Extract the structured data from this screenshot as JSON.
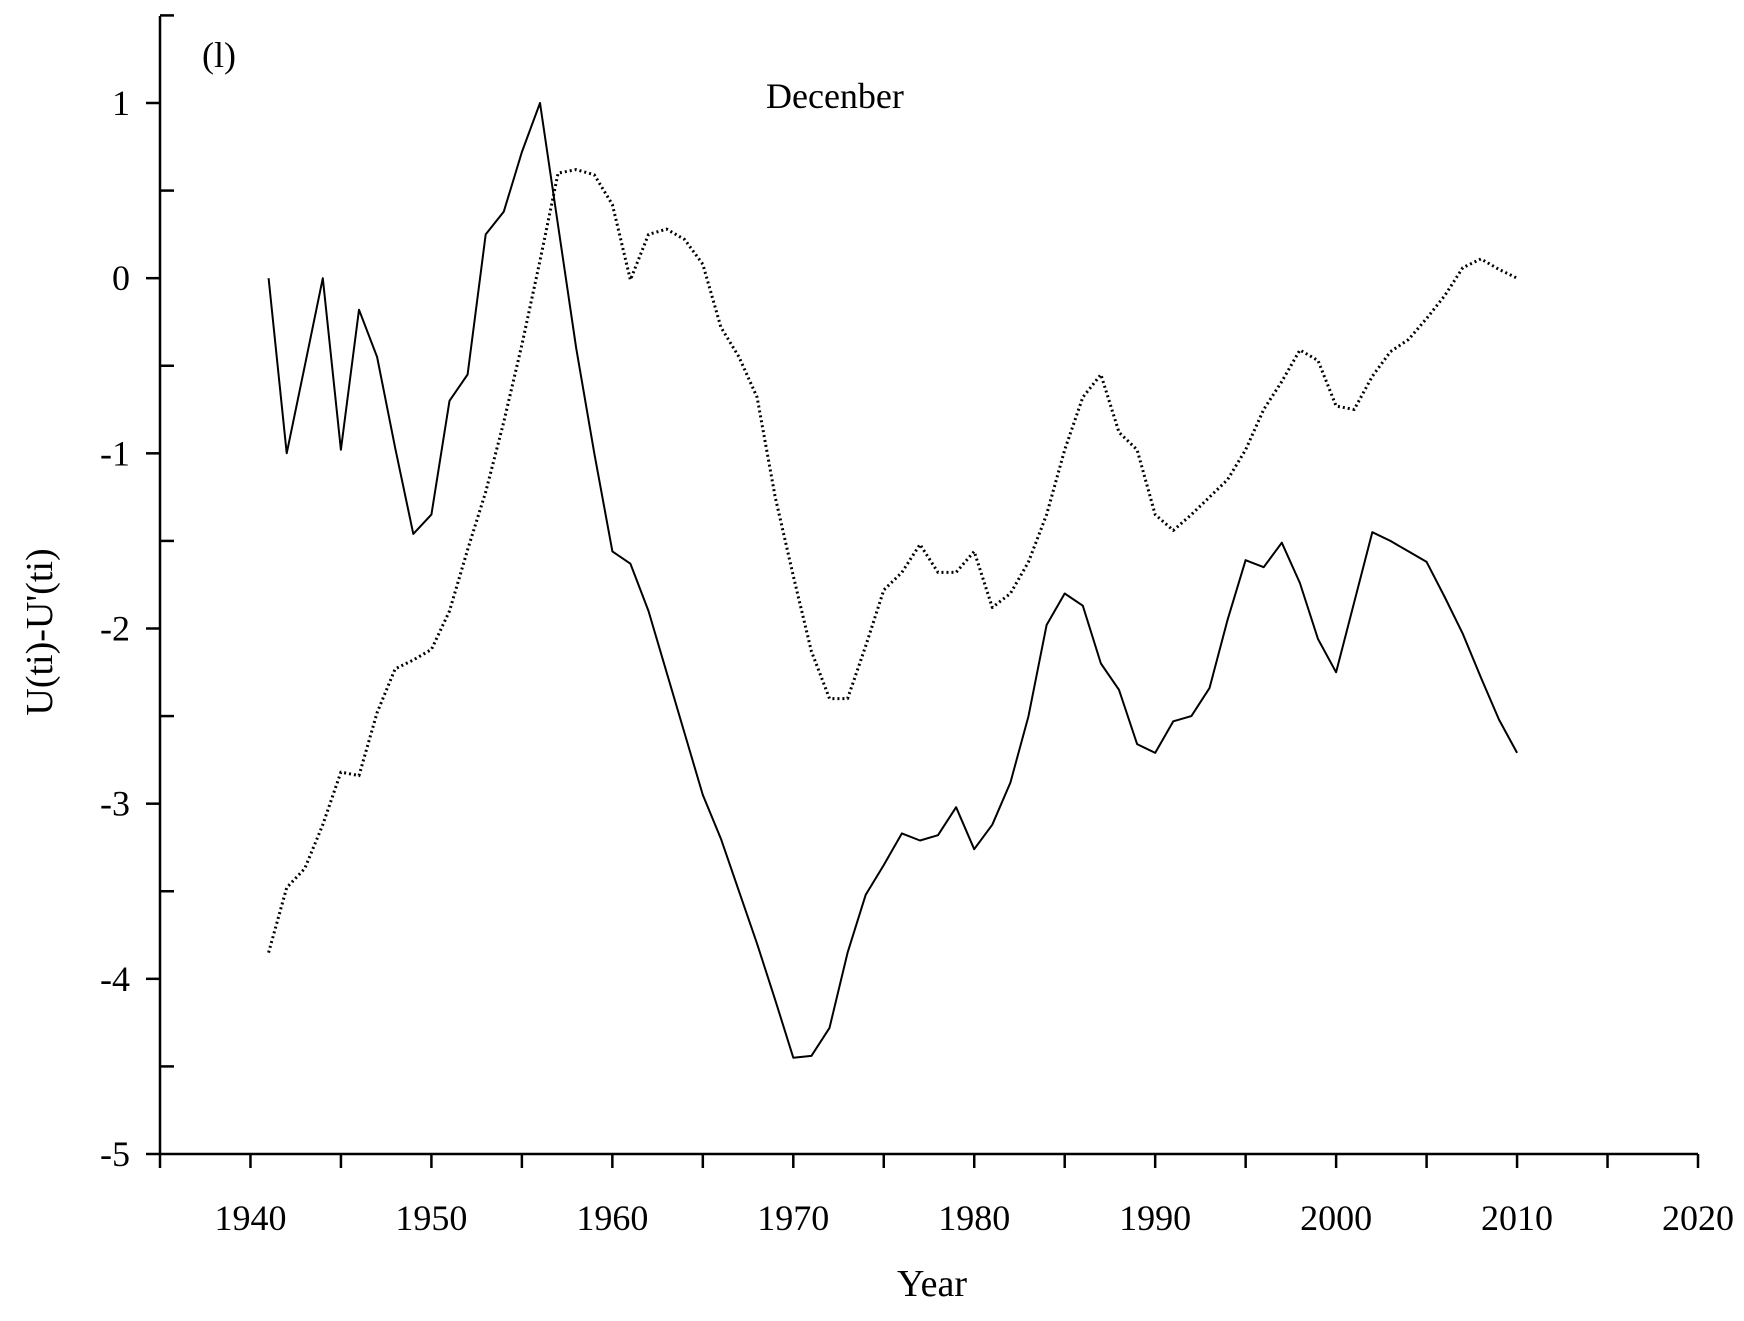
{
  "chart_data": {
    "type": "line",
    "title": "Decenber",
    "panel_label": "(l)",
    "xlabel": "Year",
    "ylabel": "U(ti)-U'(ti)",
    "xlim": [
      1935,
      2020
    ],
    "ylim": [
      -5,
      1.5
    ],
    "xticks": [
      1940,
      1950,
      1960,
      1970,
      1980,
      1990,
      2000,
      2010,
      2020
    ],
    "yticks": [
      1,
      0,
      -1,
      -2,
      -3,
      -4,
      -5
    ],
    "x_minor_step": 5,
    "y_minor_step": 0.5,
    "grid": false,
    "legend": "none",
    "series": [
      {
        "style": "solid",
        "x": [
          1941,
          1942,
          1943,
          1944,
          1945,
          1946,
          1947,
          1948,
          1949,
          1950,
          1951,
          1952,
          1953,
          1954,
          1955,
          1956,
          1957,
          1958,
          1959,
          1960,
          1961,
          1962,
          1963,
          1964,
          1965,
          1966,
          1967,
          1968,
          1969,
          1970,
          1971,
          1972,
          1973,
          1974,
          1975,
          1976,
          1977,
          1978,
          1979,
          1980,
          1981,
          1982,
          1983,
          1984,
          1985,
          1986,
          1987,
          1988,
          1989,
          1990,
          1991,
          1992,
          1993,
          1994,
          1995,
          1996,
          1997,
          1998,
          1999,
          2000,
          2001,
          2002,
          2003,
          2004,
          2005,
          2006,
          2007,
          2008,
          2009,
          2010
        ],
        "y": [
          0,
          -1.0,
          -0.5,
          0,
          -0.98,
          -0.18,
          -0.45,
          -0.97,
          -1.46,
          -1.35,
          -0.7,
          -0.55,
          0.25,
          0.38,
          0.72,
          1.0,
          0.3,
          -0.4,
          -1.0,
          -1.56,
          -1.63,
          -1.9,
          -2.25,
          -2.6,
          -2.95,
          -3.2,
          -3.5,
          -3.8,
          -4.12,
          -4.45,
          -4.44,
          -4.28,
          -3.85,
          -3.52,
          -3.35,
          -3.17,
          -3.21,
          -3.18,
          -3.02,
          -3.26,
          -3.12,
          -2.88,
          -2.5,
          -1.98,
          -1.8,
          -1.87,
          -2.2,
          -2.35,
          -2.66,
          -2.71,
          -2.53,
          -2.5,
          -2.34,
          -1.95,
          -1.61,
          -1.65,
          -1.51,
          -1.74,
          -2.06,
          -2.25,
          -1.85,
          -1.45,
          -1.5,
          -1.56,
          -1.62,
          -1.82,
          -2.03,
          -2.28,
          -2.52,
          -2.71
        ]
      },
      {
        "style": "dotted",
        "x": [
          1941,
          1942,
          1943,
          1944,
          1945,
          1946,
          1947,
          1948,
          1949,
          1950,
          1951,
          1952,
          1953,
          1954,
          1955,
          1956,
          1957,
          1958,
          1959,
          1960,
          1961,
          1962,
          1963,
          1964,
          1965,
          1966,
          1967,
          1968,
          1969,
          1970,
          1971,
          1972,
          1973,
          1974,
          1975,
          1976,
          1977,
          1978,
          1979,
          1980,
          1981,
          1982,
          1983,
          1984,
          1985,
          1986,
          1987,
          1988,
          1989,
          1990,
          1991,
          1992,
          1993,
          1994,
          1995,
          1996,
          1997,
          1998,
          1999,
          2000,
          2001,
          2002,
          2003,
          2004,
          2005,
          2006,
          2007,
          2008,
          2009,
          2010
        ],
        "y": [
          -3.85,
          -3.48,
          -3.37,
          -3.12,
          -2.82,
          -2.84,
          -2.48,
          -2.23,
          -2.18,
          -2.12,
          -1.9,
          -1.55,
          -1.22,
          -0.82,
          -0.38,
          0.1,
          0.6,
          0.62,
          0.59,
          0.42,
          -0.01,
          0.25,
          0.28,
          0.22,
          0.08,
          -0.28,
          -0.45,
          -0.68,
          -1.25,
          -1.7,
          -2.13,
          -2.4,
          -2.4,
          -2.1,
          -1.78,
          -1.68,
          -1.52,
          -1.68,
          -1.68,
          -1.56,
          -1.88,
          -1.8,
          -1.62,
          -1.35,
          -0.98,
          -0.68,
          -0.55,
          -0.88,
          -0.98,
          -1.35,
          -1.44,
          -1.35,
          -1.25,
          -1.15,
          -0.98,
          -0.75,
          -0.59,
          -0.41,
          -0.47,
          -0.73,
          -0.75,
          -0.56,
          -0.42,
          -0.35,
          -0.23,
          -0.1,
          0.06,
          0.11,
          0.05,
          0
        ]
      }
    ]
  }
}
